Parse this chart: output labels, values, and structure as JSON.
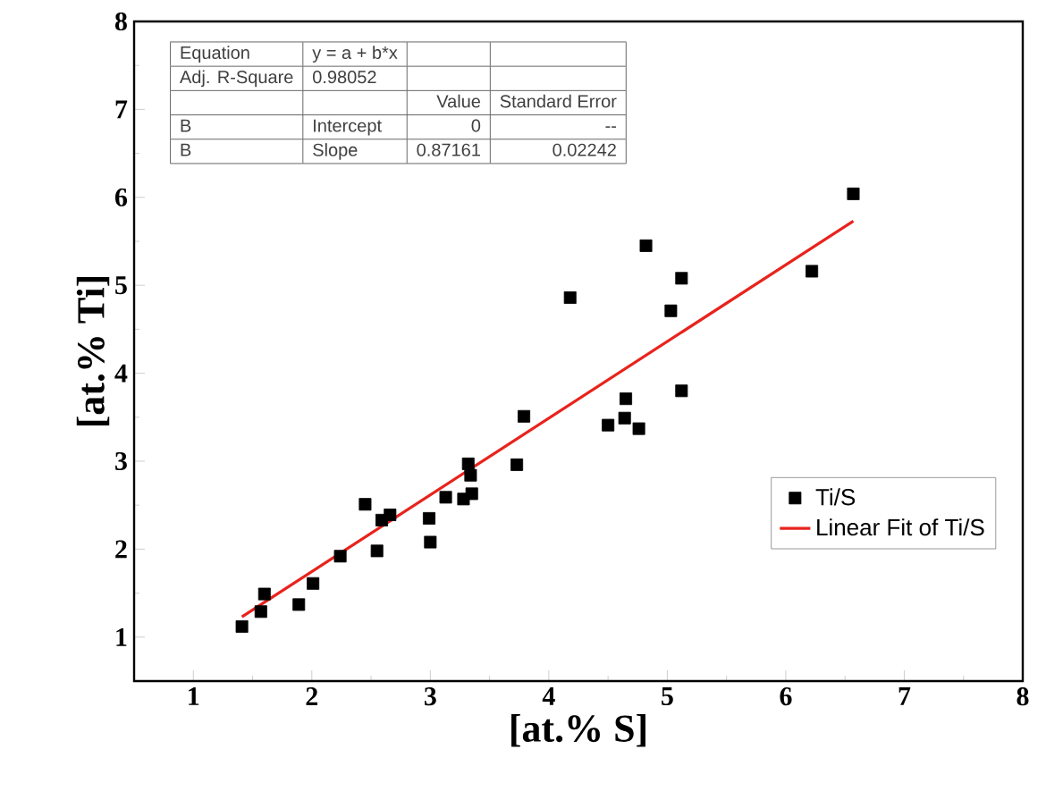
{
  "chart_data": {
    "type": "scatter",
    "xlabel": "[at.% S]",
    "ylabel": "[at.% Ti]",
    "xlim": [
      0.5,
      8
    ],
    "ylim": [
      0.5,
      8
    ],
    "xticks": [
      1,
      2,
      3,
      4,
      5,
      6,
      7,
      8
    ],
    "yticks": [
      1,
      2,
      3,
      4,
      5,
      6,
      7,
      8
    ],
    "legend": "bottom right",
    "series": [
      {
        "name": "Ti/S",
        "marker": "square",
        "color": "#000000",
        "x": [
          1.41,
          1.57,
          1.6,
          1.89,
          2.01,
          2.24,
          2.45,
          2.55,
          2.59,
          2.66,
          2.99,
          3.0,
          3.13,
          3.28,
          3.32,
          3.34,
          3.35,
          3.73,
          3.79,
          4.18,
          4.5,
          4.64,
          4.65,
          4.76,
          4.82,
          5.03,
          5.12,
          5.12,
          6.22,
          6.57
        ],
        "values": [
          1.12,
          1.29,
          1.49,
          1.37,
          1.61,
          1.92,
          2.51,
          1.98,
          2.33,
          2.39,
          2.35,
          2.08,
          2.59,
          2.57,
          2.97,
          2.84,
          2.63,
          2.96,
          3.51,
          4.86,
          3.41,
          3.49,
          3.71,
          3.37,
          5.45,
          4.71,
          5.08,
          3.8,
          5.16,
          6.04
        ]
      },
      {
        "name": "Linear Fit of Ti/S",
        "type": "line",
        "color": "#e8231c",
        "x": [
          1.41,
          6.57
        ],
        "values": [
          1.23,
          5.73
        ]
      }
    ],
    "annotations": [
      "Equation",
      "y = a + b*x",
      "Adj. R-Square",
      "0.98052",
      "Value",
      "Standard Error",
      "B",
      "Intercept",
      "0",
      "--",
      "B",
      "Slope",
      "0.87161",
      "0.02242"
    ]
  }
}
